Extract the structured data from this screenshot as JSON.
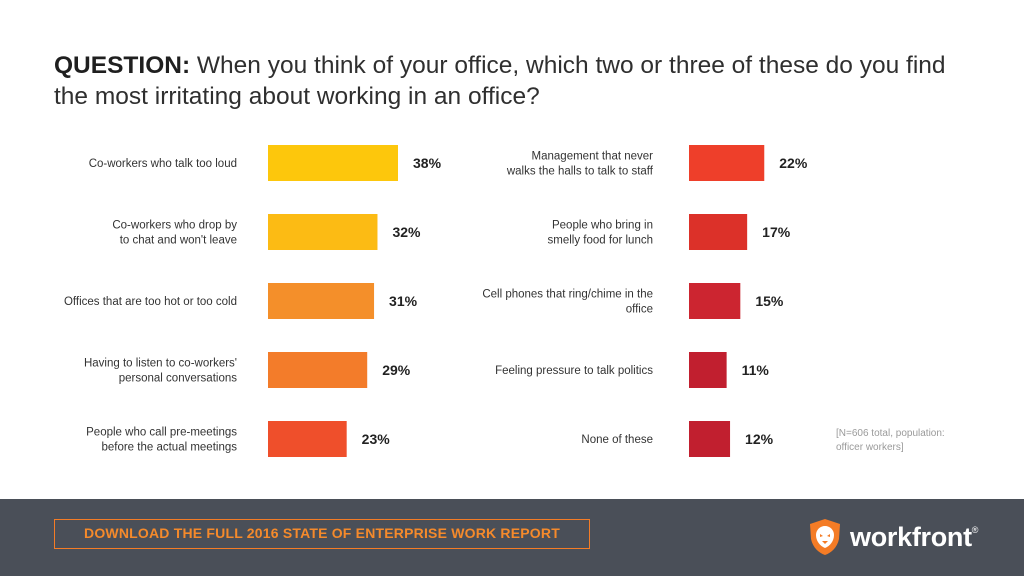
{
  "question": {
    "label": "QUESTION:",
    "text": " When you think of your office, which two or three of these do you find the most irritating about working in an office?"
  },
  "chart_data": {
    "type": "bar",
    "orientation": "horizontal",
    "unit": "%",
    "xlim": [
      0,
      38
    ],
    "panels": [
      {
        "categories": [
          [
            "Co-workers who talk too loud"
          ],
          [
            "Co-workers who drop by",
            "to chat and won't leave"
          ],
          [
            "Offices that are too hot or too cold"
          ],
          [
            "Having to listen to co-workers'",
            "personal conversations"
          ],
          [
            "People who call pre-meetings",
            "before the actual meetings"
          ]
        ],
        "values": [
          38,
          32,
          31,
          29,
          23
        ],
        "value_labels": [
          "38%",
          "32%",
          "31%",
          "29%",
          "23%"
        ],
        "colors": [
          "#fdc70c",
          "#fcbb14",
          "#f48f2a",
          "#f37c2a",
          "#ef4f2b"
        ]
      },
      {
        "categories": [
          [
            "Management that never",
            "walks the halls to talk to staff"
          ],
          [
            "People who bring in",
            "smelly food for lunch"
          ],
          [
            "Cell phones that ring/chime in the",
            "office"
          ],
          [
            "Feeling pressure to talk politics"
          ],
          [
            "None of these"
          ]
        ],
        "values": [
          22,
          17,
          15,
          11,
          12
        ],
        "value_labels": [
          "22%",
          "17%",
          "15%",
          "11%",
          "12%"
        ],
        "colors": [
          "#ee3f2a",
          "#dc3129",
          "#cc2530",
          "#c11f2f",
          "#c11f2f"
        ]
      }
    ]
  },
  "note": {
    "line1": "[N=606 total, population:",
    "line2": "officer workers]"
  },
  "footer": {
    "cta": "DOWNLOAD THE FULL 2016 STATE OF ENTERPRISE WORK REPORT",
    "brand": "workfront",
    "brand_mark": "®",
    "bg_color": "#4a4f58",
    "accent_color": "#f47c26"
  }
}
